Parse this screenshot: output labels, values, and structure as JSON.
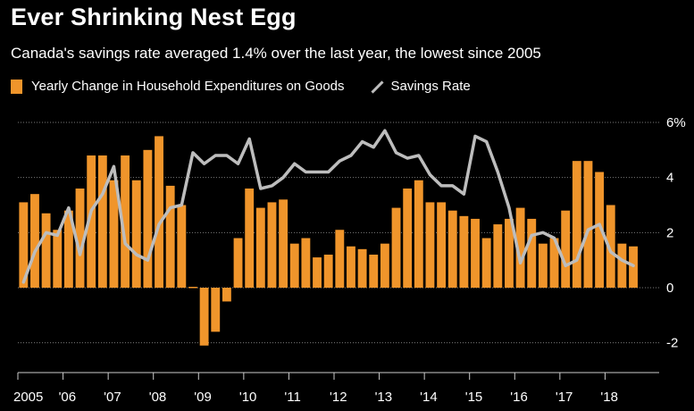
{
  "header": {
    "title": "Ever Shrinking Nest Egg",
    "subtitle": "Canada's savings rate averaged 1.4% over the last year, the lowest since 2005"
  },
  "legend": {
    "bar_label": "Yearly Change in Household Expenditures on Goods",
    "line_label": "Savings Rate"
  },
  "colors": {
    "bar": "#f0952b",
    "line": "#bdbdbd",
    "grid": "#7a7a7a",
    "axis": "#cccccc"
  },
  "chart_data": {
    "type": "bar+line",
    "title": "Ever Shrinking Nest Egg",
    "ylim": [
      -3,
      6.3
    ],
    "yticks": [
      {
        "value": 6,
        "label": "6%"
      },
      {
        "value": 4,
        "label": "4"
      },
      {
        "value": 2,
        "label": "2"
      },
      {
        "value": 0,
        "label": "0"
      },
      {
        "value": -2,
        "label": "-2"
      }
    ],
    "xticks": [
      {
        "index": 0,
        "label": "2005"
      },
      {
        "index": 4,
        "label": "'06"
      },
      {
        "index": 8,
        "label": "'07"
      },
      {
        "index": 12,
        "label": "'08"
      },
      {
        "index": 16,
        "label": "'09"
      },
      {
        "index": 20,
        "label": "'10"
      },
      {
        "index": 24,
        "label": "'11"
      },
      {
        "index": 28,
        "label": "'12"
      },
      {
        "index": 32,
        "label": "'13"
      },
      {
        "index": 36,
        "label": "'14"
      },
      {
        "index": 40,
        "label": "'15"
      },
      {
        "index": 44,
        "label": "'16"
      },
      {
        "index": 48,
        "label": "'17"
      },
      {
        "index": 52,
        "label": "'18"
      }
    ],
    "quarters": 56,
    "series": [
      {
        "name": "Yearly Change in Household Expenditures on Goods",
        "kind": "bar",
        "values": [
          3.1,
          3.4,
          2.7,
          2.1,
          2.8,
          3.6,
          4.8,
          4.8,
          3.9,
          4.8,
          3.9,
          5.0,
          5.5,
          3.7,
          3.0,
          0.0,
          -2.1,
          -1.6,
          -0.5,
          1.8,
          3.6,
          2.9,
          3.1,
          3.2,
          1.6,
          1.8,
          1.1,
          1.2,
          2.1,
          1.5,
          1.4,
          1.2,
          1.6,
          2.9,
          3.6,
          3.9,
          3.1,
          3.1,
          2.8,
          2.6,
          2.5,
          1.8,
          2.3,
          2.5,
          2.9,
          2.5,
          1.6,
          1.8,
          2.8,
          4.6,
          4.6,
          4.2,
          3.0,
          1.6,
          1.5
        ]
      },
      {
        "name": "Savings Rate",
        "kind": "line",
        "values": [
          0.2,
          1.3,
          2.0,
          1.9,
          2.9,
          1.2,
          2.8,
          3.4,
          4.4,
          1.6,
          1.2,
          1.0,
          2.3,
          2.9,
          3.0,
          4.9,
          4.5,
          4.8,
          4.8,
          4.5,
          5.4,
          3.6,
          3.7,
          4.0,
          4.5,
          4.2,
          4.2,
          4.2,
          4.6,
          4.8,
          5.3,
          5.1,
          5.7,
          4.9,
          4.7,
          4.8,
          4.1,
          3.7,
          3.7,
          3.4,
          5.5,
          5.3,
          4.2,
          2.9,
          0.9,
          1.9,
          2.0,
          1.8,
          0.8,
          1.0,
          2.1,
          2.3,
          1.3,
          1.0,
          0.8
        ]
      }
    ]
  }
}
